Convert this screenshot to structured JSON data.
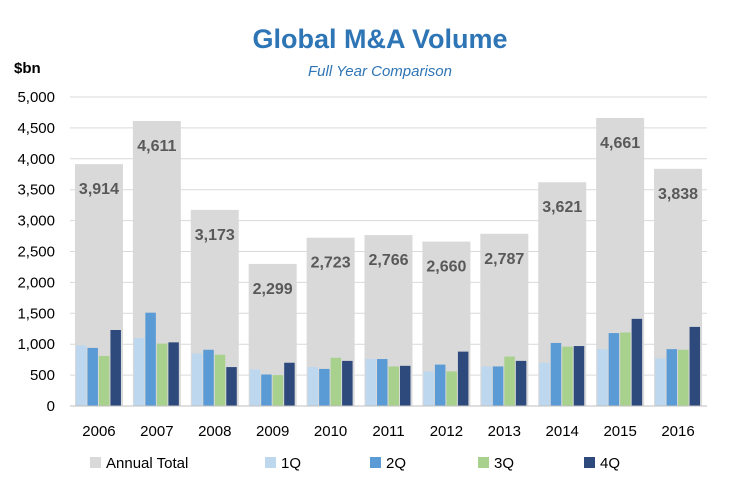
{
  "chart_data": {
    "type": "bar",
    "title": "Global M&A Volume",
    "subtitle": "Full Year Comparison",
    "ylabel": "$bn",
    "xlabel": "",
    "ylim": [
      0,
      5000
    ],
    "yticks": [
      "0",
      "500",
      "1,000",
      "1,500",
      "2,000",
      "2,500",
      "3,000",
      "3,500",
      "4,000",
      "4,500",
      "5,000"
    ],
    "grid": true,
    "legend_position": "bottom",
    "categories": [
      "2006",
      "2007",
      "2008",
      "2009",
      "2010",
      "2011",
      "2012",
      "2013",
      "2014",
      "2015",
      "2016"
    ],
    "series": [
      {
        "name": "Annual Total",
        "color": "#D9D9D9",
        "values": [
          3914,
          4611,
          3173,
          2299,
          2723,
          2766,
          2660,
          2787,
          3621,
          4661,
          3838
        ],
        "labels": [
          "3,914",
          "4,611",
          "3,173",
          "2,299",
          "2,723",
          "2,766",
          "2,660",
          "2,787",
          "3,621",
          "4,661",
          "3,838"
        ]
      },
      {
        "name": "1Q",
        "color": "#BDD7EE",
        "values": [
          980,
          1100,
          850,
          590,
          630,
          760,
          560,
          640,
          700,
          920,
          770
        ]
      },
      {
        "name": "2Q",
        "color": "#5B9BD5",
        "values": [
          940,
          1510,
          910,
          510,
          600,
          760,
          670,
          640,
          1020,
          1180,
          920
        ]
      },
      {
        "name": "3Q",
        "color": "#A9D18E",
        "values": [
          810,
          1010,
          830,
          500,
          780,
          640,
          560,
          800,
          960,
          1190,
          910
        ]
      },
      {
        "name": "4Q",
        "color": "#2E4A7D",
        "values": [
          1230,
          1030,
          630,
          700,
          730,
          650,
          880,
          730,
          970,
          1410,
          1280
        ]
      }
    ]
  }
}
